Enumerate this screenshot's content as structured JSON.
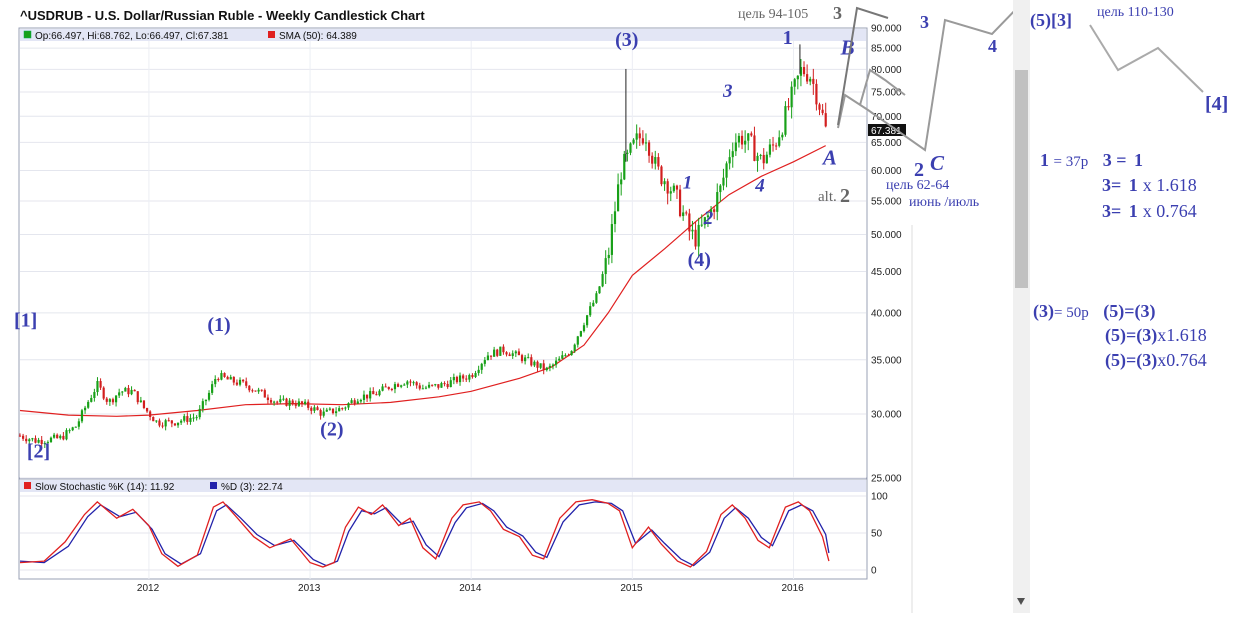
{
  "title": "^USDRUB - U.S. Dollar/Russian Ruble - Weekly Candlestick Chart",
  "legend": {
    "ohlc": "Op:66.497, Hi:68.762, Lo:66.497, Cl:67.381",
    "sma": "SMA (50): 64.389",
    "stoch_k": "Slow Stochastic %K (14): 11.92",
    "stoch_d": "%D (3): 22.74"
  },
  "last_price": "67.381",
  "colors": {
    "up": "#18a018",
    "down": "#d21f1f",
    "sma": "#e02020",
    "stoch_k": "#e02020",
    "stoch_d": "#2222aa",
    "wave": "#3b3fb0",
    "projection": "#9a9a9a",
    "legend_bg": "#e3e6f5"
  },
  "chart_data": [
    {
      "type": "candlestick",
      "title": "^USDRUB - U.S. Dollar/Russian Ruble - Weekly Candlestick Chart",
      "y_scale": "log",
      "ylim": [
        25,
        90
      ],
      "y_ticks": [
        "25.000",
        "30.000",
        "35.000",
        "40.000",
        "45.000",
        "50.000",
        "55.000",
        "60.000",
        "65.000",
        "70.000",
        "75.000",
        "80.000",
        "85.000",
        "90.000"
      ],
      "x_ticks": [
        "2012",
        "2013",
        "2014",
        "2015",
        "2016"
      ],
      "x_range": [
        2011.2,
        2016.45
      ],
      "price_path": [
        [
          2011.2,
          28.2
        ],
        [
          2011.3,
          27.8
        ],
        [
          2011.45,
          28.0
        ],
        [
          2011.55,
          29.0
        ],
        [
          2011.62,
          31.0
        ],
        [
          2011.68,
          32.6
        ],
        [
          2011.75,
          31.0
        ],
        [
          2011.82,
          32.0
        ],
        [
          2011.9,
          32.0
        ],
        [
          2011.97,
          30.5
        ],
        [
          2012.05,
          29.3
        ],
        [
          2012.15,
          29.3
        ],
        [
          2012.3,
          29.8
        ],
        [
          2012.38,
          32.0
        ],
        [
          2012.42,
          33.5
        ],
        [
          2012.5,
          33.0
        ],
        [
          2012.6,
          32.6
        ],
        [
          2012.7,
          31.8
        ],
        [
          2012.8,
          31.0
        ],
        [
          2012.9,
          31.0
        ],
        [
          2013.0,
          30.6
        ],
        [
          2013.08,
          30.0
        ],
        [
          2013.2,
          30.5
        ],
        [
          2013.3,
          31.5
        ],
        [
          2013.4,
          31.7
        ],
        [
          2013.5,
          32.5
        ],
        [
          2013.6,
          33.0
        ],
        [
          2013.7,
          32.3
        ],
        [
          2013.8,
          32.5
        ],
        [
          2013.9,
          33.0
        ],
        [
          2014.0,
          33.5
        ],
        [
          2014.1,
          35.5
        ],
        [
          2014.2,
          36.0
        ],
        [
          2014.3,
          35.3
        ],
        [
          2014.4,
          34.5
        ],
        [
          2014.47,
          34.0
        ],
        [
          2014.55,
          35.0
        ],
        [
          2014.62,
          36.0
        ],
        [
          2014.7,
          39.0
        ],
        [
          2014.78,
          42.0
        ],
        [
          2014.85,
          47.0
        ],
        [
          2014.9,
          55.0
        ],
        [
          2014.93,
          60.0
        ],
        [
          2014.97,
          62.0
        ],
        [
          2015.02,
          65.0
        ],
        [
          2015.08,
          67.0
        ],
        [
          2015.15,
          60.0
        ],
        [
          2015.22,
          58.0
        ],
        [
          2015.3,
          54.0
        ],
        [
          2015.36,
          50.0
        ],
        [
          2015.4,
          49.5
        ],
        [
          2015.48,
          53.0
        ],
        [
          2015.55,
          57.0
        ],
        [
          2015.62,
          65.0
        ],
        [
          2015.68,
          66.0
        ],
        [
          2015.75,
          64.0
        ],
        [
          2015.8,
          61.5
        ],
        [
          2015.88,
          64.5
        ],
        [
          2015.95,
          70.0
        ],
        [
          2016.0,
          75.0
        ],
        [
          2016.05,
          80.0
        ],
        [
          2016.1,
          79.0
        ],
        [
          2016.15,
          74.0
        ],
        [
          2016.2,
          67.4
        ]
      ],
      "spikes": [
        {
          "x": 2014.96,
          "high": 80.1
        },
        {
          "x": 2016.04,
          "high": 85.9
        }
      ],
      "sma_path": [
        [
          2011.2,
          30.3
        ],
        [
          2011.5,
          29.9
        ],
        [
          2011.8,
          29.8
        ],
        [
          2012.0,
          29.9
        ],
        [
          2012.3,
          30.3
        ],
        [
          2012.6,
          30.8
        ],
        [
          2012.9,
          30.9
        ],
        [
          2013.2,
          30.8
        ],
        [
          2013.5,
          31.0
        ],
        [
          2013.8,
          31.5
        ],
        [
          2014.0,
          32.0
        ],
        [
          2014.3,
          33.2
        ],
        [
          2014.5,
          34.3
        ],
        [
          2014.7,
          36.5
        ],
        [
          2014.85,
          40.0
        ],
        [
          2015.0,
          44.5
        ],
        [
          2015.2,
          48.0
        ],
        [
          2015.4,
          52.0
        ],
        [
          2015.6,
          56.0
        ],
        [
          2015.8,
          59.0
        ],
        [
          2016.0,
          61.5
        ],
        [
          2016.2,
          64.4
        ]
      ]
    },
    {
      "type": "line",
      "title": "Slow Stochastic %K (14) / %D (3)",
      "ylim": [
        0,
        100
      ],
      "y_ticks": [
        "0",
        "50",
        "100"
      ],
      "x_range": [
        2011.2,
        2016.45
      ],
      "series": [
        {
          "name": "Slow Stochastic %K (14)",
          "color": "#e02020",
          "points": [
            [
              2011.2,
              10
            ],
            [
              2011.35,
              12
            ],
            [
              2011.48,
              38
            ],
            [
              2011.6,
              75
            ],
            [
              2011.68,
              92
            ],
            [
              2011.8,
              70
            ],
            [
              2011.9,
              82
            ],
            [
              2012.0,
              60
            ],
            [
              2012.08,
              22
            ],
            [
              2012.18,
              5
            ],
            [
              2012.3,
              20
            ],
            [
              2012.4,
              85
            ],
            [
              2012.46,
              92
            ],
            [
              2012.55,
              70
            ],
            [
              2012.65,
              45
            ],
            [
              2012.75,
              30
            ],
            [
              2012.88,
              42
            ],
            [
              2013.0,
              10
            ],
            [
              2013.08,
              4
            ],
            [
              2013.15,
              10
            ],
            [
              2013.22,
              58
            ],
            [
              2013.3,
              85
            ],
            [
              2013.38,
              75
            ],
            [
              2013.45,
              88
            ],
            [
              2013.55,
              60
            ],
            [
              2013.62,
              70
            ],
            [
              2013.7,
              30
            ],
            [
              2013.78,
              15
            ],
            [
              2013.88,
              70
            ],
            [
              2013.95,
              88
            ],
            [
              2014.05,
              92
            ],
            [
              2014.12,
              80
            ],
            [
              2014.2,
              55
            ],
            [
              2014.3,
              45
            ],
            [
              2014.38,
              20
            ],
            [
              2014.45,
              15
            ],
            [
              2014.55,
              70
            ],
            [
              2014.65,
              92
            ],
            [
              2014.75,
              95
            ],
            [
              2014.85,
              90
            ],
            [
              2014.92,
              80
            ],
            [
              2015.0,
              30
            ],
            [
              2015.1,
              58
            ],
            [
              2015.18,
              35
            ],
            [
              2015.28,
              12
            ],
            [
              2015.36,
              4
            ],
            [
              2015.46,
              25
            ],
            [
              2015.55,
              75
            ],
            [
              2015.62,
              88
            ],
            [
              2015.7,
              70
            ],
            [
              2015.78,
              40
            ],
            [
              2015.85,
              30
            ],
            [
              2015.95,
              85
            ],
            [
              2016.03,
              92
            ],
            [
              2016.1,
              80
            ],
            [
              2016.18,
              45
            ],
            [
              2016.22,
              12
            ]
          ]
        },
        {
          "name": "%D (3)",
          "color": "#2222aa",
          "points": [
            [
              2011.2,
              12
            ],
            [
              2011.35,
              10
            ],
            [
              2011.5,
              32
            ],
            [
              2011.62,
              72
            ],
            [
              2011.7,
              88
            ],
            [
              2011.82,
              72
            ],
            [
              2011.92,
              78
            ],
            [
              2012.02,
              55
            ],
            [
              2012.1,
              22
            ],
            [
              2012.2,
              8
            ],
            [
              2012.32,
              22
            ],
            [
              2012.42,
              80
            ],
            [
              2012.48,
              88
            ],
            [
              2012.57,
              70
            ],
            [
              2012.67,
              48
            ],
            [
              2012.78,
              33
            ],
            [
              2012.9,
              40
            ],
            [
              2013.02,
              14
            ],
            [
              2013.1,
              6
            ],
            [
              2013.17,
              12
            ],
            [
              2013.24,
              52
            ],
            [
              2013.32,
              80
            ],
            [
              2013.4,
              76
            ],
            [
              2013.47,
              84
            ],
            [
              2013.57,
              62
            ],
            [
              2013.64,
              66
            ],
            [
              2013.72,
              34
            ],
            [
              2013.8,
              18
            ],
            [
              2013.9,
              64
            ],
            [
              2013.97,
              84
            ],
            [
              2014.07,
              90
            ],
            [
              2014.14,
              80
            ],
            [
              2014.22,
              58
            ],
            [
              2014.32,
              46
            ],
            [
              2014.4,
              24
            ],
            [
              2014.47,
              17
            ],
            [
              2014.57,
              65
            ],
            [
              2014.67,
              88
            ],
            [
              2014.77,
              92
            ],
            [
              2014.87,
              90
            ],
            [
              2014.94,
              80
            ],
            [
              2015.02,
              36
            ],
            [
              2015.12,
              54
            ],
            [
              2015.2,
              36
            ],
            [
              2015.3,
              15
            ],
            [
              2015.38,
              6
            ],
            [
              2015.48,
              24
            ],
            [
              2015.57,
              70
            ],
            [
              2015.64,
              84
            ],
            [
              2015.72,
              70
            ],
            [
              2015.8,
              44
            ],
            [
              2015.87,
              33
            ],
            [
              2015.97,
              80
            ],
            [
              2016.05,
              88
            ],
            [
              2016.12,
              80
            ],
            [
              2016.2,
              48
            ],
            [
              2016.22,
              23
            ]
          ]
        }
      ]
    }
  ],
  "waves": [
    {
      "label": "[1]",
      "x": 2011.2,
      "y": 38.5,
      "size": 20,
      "style": "n"
    },
    {
      "label": "[2]",
      "x": 2011.28,
      "y": 26.5,
      "size": 20,
      "style": "n"
    },
    {
      "label": "(1)",
      "x": 2012.4,
      "y": 38.0,
      "size": 20,
      "style": "n"
    },
    {
      "label": "(2)",
      "x": 2013.1,
      "y": 28.2,
      "size": 20,
      "style": "n"
    },
    {
      "label": "(3)",
      "x": 2014.93,
      "y": 85.5,
      "size": 20,
      "style": "n"
    },
    {
      "label": "(4)",
      "x": 2015.38,
      "y": 45.7,
      "size": 20,
      "style": "n"
    },
    {
      "label": "1",
      "x": 2015.35,
      "y": 57.0,
      "size": 19,
      "style": "i"
    },
    {
      "label": "2",
      "x": 2015.48,
      "y": 51.5,
      "size": 19,
      "style": "i"
    },
    {
      "label": "3",
      "x": 2015.6,
      "y": 74.0,
      "size": 19,
      "style": "i"
    },
    {
      "label": "4",
      "x": 2015.8,
      "y": 56.5,
      "size": 19,
      "style": "i"
    },
    {
      "label": "1",
      "x": 2015.97,
      "y": 86.0,
      "size": 20,
      "style": "n"
    },
    {
      "label": "A",
      "x": 2016.22,
      "y": 61.0,
      "size": 21,
      "style": "i"
    },
    {
      "label": "B",
      "x": 2016.33,
      "y": 83.5,
      "size": 21,
      "style": "i"
    }
  ],
  "notes": {
    "target_top": "цель 94-105",
    "target_top_wave": "3",
    "wave_3": "3",
    "wave_4": "4",
    "wave_5_3": "(5)[3]",
    "target_right": "цель 110-130",
    "wave_bracket4": "[4]",
    "wave_2": "2",
    "wave_c": "C",
    "target_mid": "цель 62-64",
    "date_mid": "июнь /июль",
    "alt_prefix": "alt.",
    "alt_wave": "2"
  },
  "calcs": {
    "c1_a": "1",
    "c1_b": "= 37р",
    "c1_c": "3",
    "c1_d": "=",
    "c1_e": "1",
    "c2_a": "3",
    "c2_b": "=",
    "c2_c": "1",
    "c2_d": "x 1.618",
    "c3_a": "3",
    "c3_b": "=",
    "c3_c": "1",
    "c3_d": "x 0.764",
    "d1_a": "(3)",
    "d1_b": "= 50р",
    "d1_c": "(5)",
    "d1_d": "=",
    "d1_e": "(3)",
    "d2_a": "(5)",
    "d2_b": "=",
    "d2_c": "(3)",
    "d2_d": "x1.618",
    "d3_a": "(5)",
    "d3_b": "=",
    "d3_c": "(3)",
    "d3_d": "x0.764"
  }
}
